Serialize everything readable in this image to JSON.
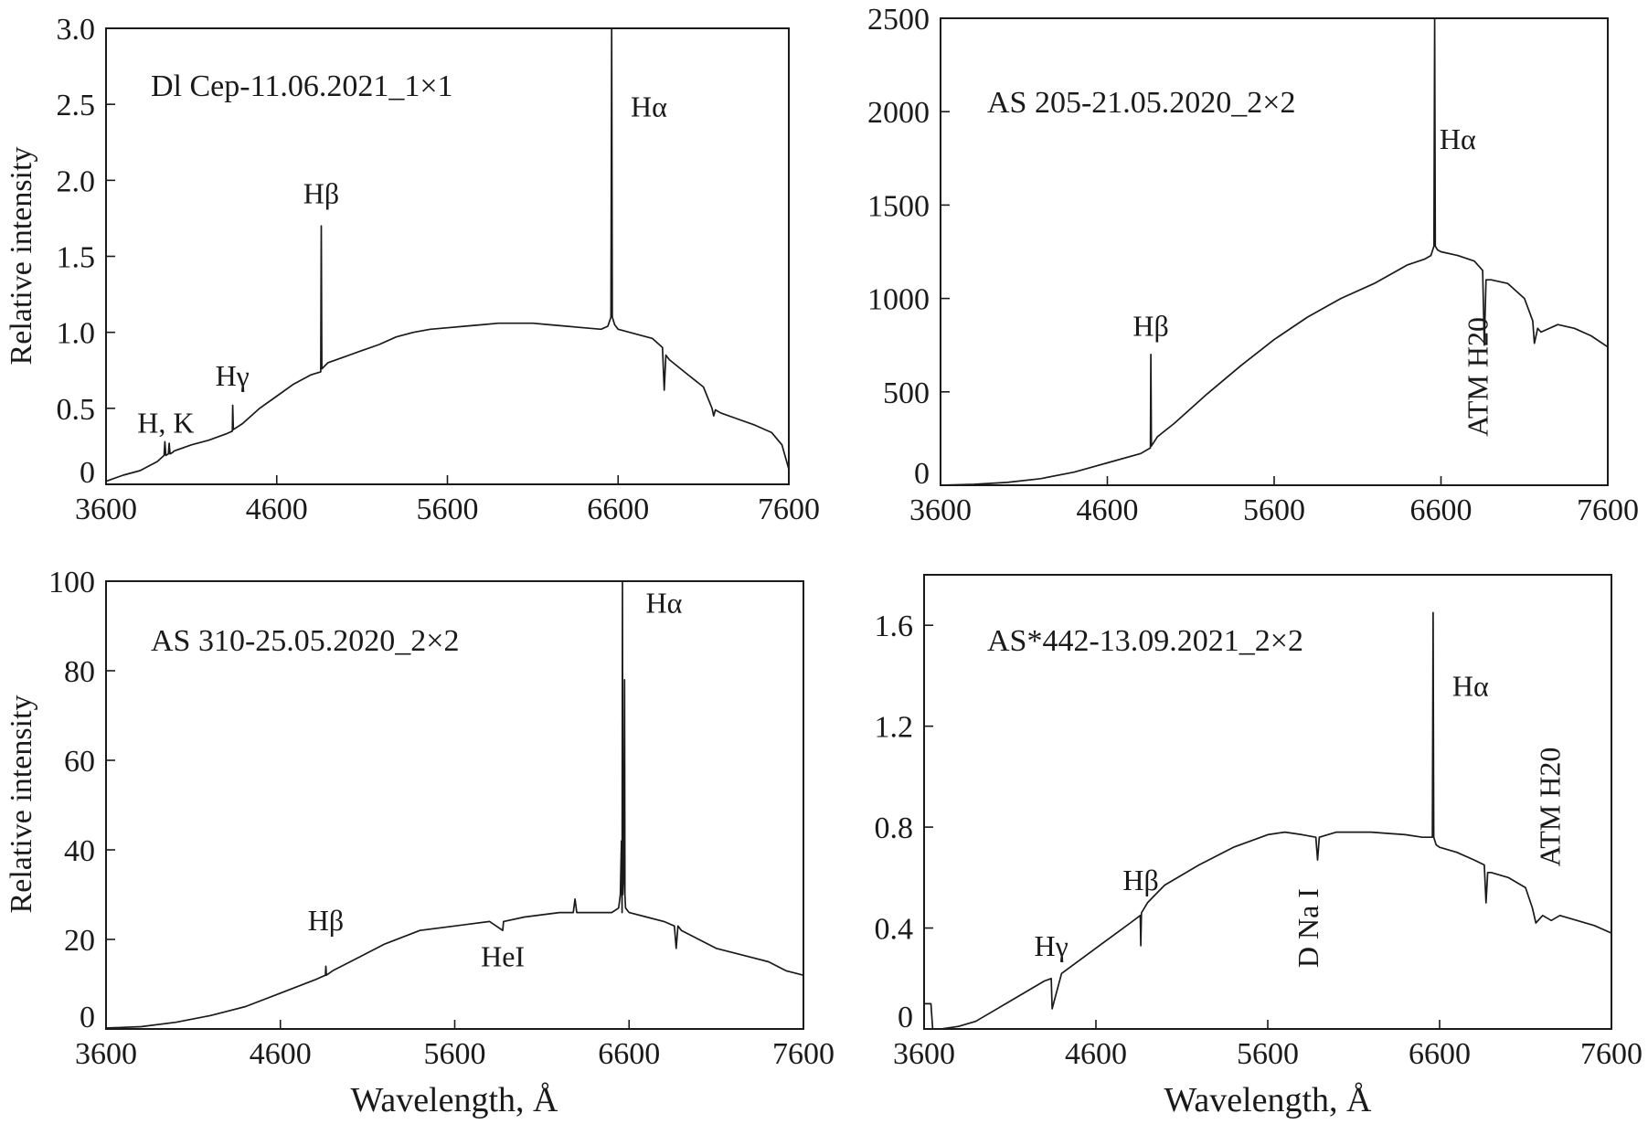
{
  "chart_data": [
    {
      "type": "line",
      "title": "Dl Cep-11.06.2021_1×1",
      "xlabel": "",
      "ylabel": "Relative intensity",
      "xlim": [
        3600,
        7600
      ],
      "ylim": [
        0,
        3.0
      ],
      "xticks": [
        "3600",
        "4600",
        "5600",
        "6600",
        "7600"
      ],
      "yticks": [
        "0",
        "0.5",
        "1.0",
        "1.5",
        "2.0",
        "2.5",
        "3.0"
      ],
      "grid": false,
      "series": [
        {
          "x": [
            3600,
            3700,
            3800,
            3900,
            3940,
            3945,
            3950,
            3965,
            3970,
            3975,
            3990,
            4000,
            4100,
            4200,
            4300,
            4340,
            4342,
            4346,
            4400,
            4500,
            4600,
            4700,
            4800,
            4858,
            4861,
            4864,
            4900,
            5000,
            5100,
            5200,
            5300,
            5400,
            5500,
            5600,
            5700,
            5800,
            5900,
            6000,
            6100,
            6200,
            6300,
            6400,
            6500,
            6540,
            6558,
            6562,
            6566,
            6580,
            6600,
            6700,
            6800,
            6860,
            6870,
            6880,
            6900,
            7000,
            7100,
            7150,
            7160,
            7170,
            7200,
            7300,
            7400,
            7500,
            7560,
            7600
          ],
          "y": [
            0.02,
            0.06,
            0.09,
            0.15,
            0.19,
            0.28,
            0.19,
            0.2,
            0.27,
            0.2,
            0.21,
            0.22,
            0.26,
            0.29,
            0.33,
            0.35,
            0.52,
            0.36,
            0.4,
            0.5,
            0.58,
            0.66,
            0.72,
            0.74,
            1.7,
            0.76,
            0.8,
            0.84,
            0.88,
            0.92,
            0.97,
            1.0,
            1.02,
            1.03,
            1.04,
            1.05,
            1.06,
            1.06,
            1.06,
            1.05,
            1.04,
            1.03,
            1.02,
            1.04,
            1.1,
            3.0,
            1.1,
            1.05,
            1.02,
            0.99,
            0.96,
            0.9,
            0.62,
            0.85,
            0.82,
            0.73,
            0.64,
            0.5,
            0.45,
            0.49,
            0.47,
            0.43,
            0.39,
            0.34,
            0.26,
            0.1
          ]
        }
      ],
      "annotations": [
        {
          "text": "H, K",
          "x": 3950,
          "y": 0.34
        },
        {
          "text": "Hγ",
          "x": 4340,
          "y": 0.65
        },
        {
          "text": "Hβ",
          "x": 4861,
          "y": 1.85
        },
        {
          "text": "Hα",
          "x": 6780,
          "y": 2.42
        }
      ]
    },
    {
      "type": "line",
      "title": "AS 205-21.05.2020_2×2",
      "xlabel": "",
      "ylabel": "",
      "xlim": [
        3600,
        7600
      ],
      "ylim": [
        0,
        2500
      ],
      "xticks": [
        "3600",
        "4600",
        "5600",
        "6600",
        "7600"
      ],
      "yticks": [
        "0",
        "500",
        "1000",
        "1500",
        "2000",
        "2500"
      ],
      "grid": false,
      "series": [
        {
          "x": [
            3600,
            3800,
            4000,
            4200,
            4400,
            4600,
            4800,
            4858,
            4861,
            4864,
            4900,
            5000,
            5200,
            5400,
            5600,
            5800,
            6000,
            6200,
            6300,
            6400,
            6500,
            6540,
            6558,
            6562,
            6566,
            6580,
            6600,
            6700,
            6800,
            6850,
            6860,
            6870,
            6900,
            7000,
            7100,
            7150,
            7160,
            7180,
            7200,
            7300,
            7400,
            7500,
            7600
          ],
          "y": [
            0,
            5,
            15,
            35,
            70,
            120,
            170,
            200,
            700,
            210,
            260,
            330,
            490,
            640,
            780,
            900,
            1000,
            1080,
            1130,
            1180,
            1210,
            1230,
            1280,
            2500,
            1280,
            1260,
            1250,
            1230,
            1200,
            1150,
            750,
            1100,
            1100,
            1080,
            1000,
            880,
            760,
            840,
            820,
            860,
            840,
            800,
            740
          ]
        }
      ],
      "annotations": [
        {
          "text": "Hβ",
          "x": 4861,
          "y": 800
        },
        {
          "text": "Hα",
          "x": 6700,
          "y": 1800
        },
        {
          "text": "ATM H20",
          "x": 6880,
          "y": 580
        }
      ]
    },
    {
      "type": "line",
      "title": "AS 310-25.05.2020_2×2",
      "xlabel": "Wavelength, Å",
      "ylabel": "Relative intensity",
      "xlim": [
        3600,
        7600
      ],
      "ylim": [
        0,
        100
      ],
      "xticks": [
        "3600",
        "4600",
        "5600",
        "6600",
        "7600"
      ],
      "yticks": [
        "0",
        "20",
        "40",
        "60",
        "80",
        "100"
      ],
      "grid": false,
      "series": [
        {
          "x": [
            3600,
            3800,
            4000,
            4200,
            4400,
            4600,
            4800,
            4858,
            4861,
            4864,
            4900,
            5000,
            5200,
            5400,
            5600,
            5800,
            5875,
            5880,
            6000,
            6200,
            6280,
            6290,
            6300,
            6400,
            6500,
            6540,
            6550,
            6556,
            6560,
            6562,
            6564,
            6570,
            6574,
            6576,
            6580,
            6600,
            6700,
            6800,
            6860,
            6870,
            6880,
            6900,
            7000,
            7100,
            7200,
            7300,
            7400,
            7500,
            7600
          ],
          "y": [
            0.2,
            0.5,
            1.5,
            3,
            5,
            8,
            11,
            12,
            14,
            12,
            13,
            15,
            19,
            22,
            23,
            24,
            22,
            24,
            25,
            26,
            26,
            29,
            26,
            26,
            26,
            27,
            30,
            42,
            26,
            100,
            30,
            35,
            78,
            30,
            27,
            26,
            25,
            24,
            23,
            18,
            23,
            22,
            20,
            18,
            17,
            16,
            15,
            13,
            12
          ]
        }
      ],
      "annotations": [
        {
          "text": "Hβ",
          "x": 4861,
          "y": 22
        },
        {
          "text": "HeI",
          "x": 5876,
          "y": 14
        },
        {
          "text": "Hα",
          "x": 6800,
          "y": 93
        }
      ]
    },
    {
      "type": "line",
      "title": "AS*442-13.09.2021_2×2",
      "xlabel": "Wavelength, Å",
      "ylabel": "",
      "xlim": [
        3600,
        7600
      ],
      "ylim": [
        0,
        1.8
      ],
      "xticks": [
        "3600",
        "4600",
        "5600",
        "6600",
        "7600"
      ],
      "yticks": [
        "0",
        "0.4",
        "0.8",
        "1.2",
        "1.6"
      ],
      "grid": false,
      "series": [
        {
          "x": [
            3600,
            3640,
            3650,
            3700,
            3800,
            3900,
            4000,
            4100,
            4300,
            4340,
            4345,
            4400,
            4600,
            4800,
            4858,
            4861,
            4865,
            4900,
            5000,
            5200,
            5400,
            5600,
            5700,
            5800,
            5880,
            5890,
            5900,
            6000,
            6200,
            6400,
            6500,
            6540,
            6558,
            6562,
            6566,
            6580,
            6600,
            6700,
            6800,
            6860,
            6870,
            6880,
            6900,
            7000,
            7100,
            7140,
            7160,
            7200,
            7250,
            7300,
            7400,
            7500,
            7600
          ],
          "y": [
            0.1,
            0.1,
            0.0,
            0.0,
            0.01,
            0.03,
            0.07,
            0.11,
            0.19,
            0.2,
            0.08,
            0.22,
            0.32,
            0.42,
            0.45,
            0.33,
            0.46,
            0.5,
            0.57,
            0.65,
            0.72,
            0.77,
            0.78,
            0.77,
            0.76,
            0.67,
            0.76,
            0.78,
            0.78,
            0.77,
            0.76,
            0.76,
            0.76,
            1.65,
            0.76,
            0.73,
            0.72,
            0.7,
            0.67,
            0.65,
            0.5,
            0.62,
            0.62,
            0.6,
            0.56,
            0.48,
            0.42,
            0.45,
            0.43,
            0.45,
            0.43,
            0.41,
            0.38
          ]
        }
      ],
      "annotations": [
        {
          "text": "Hγ",
          "x": 4340,
          "y": 0.29
        },
        {
          "text": "Hβ",
          "x": 4861,
          "y": 0.55
        },
        {
          "text": "D Na I",
          "x": 5893,
          "y": 0.4
        },
        {
          "text": "Hα",
          "x": 6780,
          "y": 1.32
        },
        {
          "text": "ATM H20",
          "x": 7300,
          "y": 0.88
        }
      ]
    }
  ]
}
